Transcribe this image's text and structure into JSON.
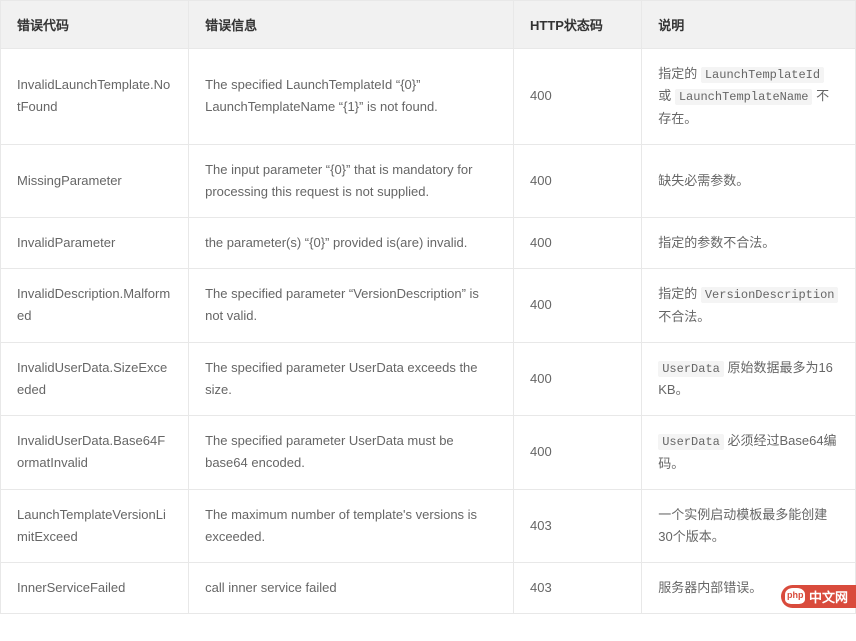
{
  "table": {
    "columns": [
      {
        "label": "错误代码",
        "class": "col1"
      },
      {
        "label": "错误信息",
        "class": "col2"
      },
      {
        "label": "HTTP状态码",
        "class": "col3"
      },
      {
        "label": "说明",
        "class": "col4"
      }
    ],
    "rows": [
      {
        "code": "InvalidLaunchTemplate.NotFound",
        "message": "The specified LaunchTemplateId “{0}” LaunchTemplateName “{1}” is not found.",
        "status": "400",
        "desc_prefix": "指定的",
        "desc_code1": "LaunchTemplateId",
        "desc_mid": "或",
        "desc_code2": "LaunchTemplateName",
        "desc_suffix": "不存在。",
        "desc_kind": "two_code"
      },
      {
        "code": "MissingParameter",
        "message": "The input parameter “{0}” that is mandatory for processing this request is not supplied.",
        "status": "400",
        "desc_plain": "缺失必需参数。",
        "desc_kind": "plain"
      },
      {
        "code": "InvalidParameter",
        "message": "the parameter(s) “{0}” provided is(are) invalid.",
        "status": "400",
        "desc_plain": "指定的参数不合法。",
        "desc_kind": "plain"
      },
      {
        "code": "InvalidDescription.Malformed",
        "message": "The specified parameter “VersionDescription” is not valid.",
        "status": "400",
        "desc_prefix": "指定的",
        "desc_code1": "VersionDescription",
        "desc_suffix": "不合法。",
        "desc_kind": "one_code"
      },
      {
        "code": "InvalidUserData.SizeExceeded",
        "message": "The specified parameter UserData exceeds the size.",
        "status": "400",
        "desc_code1": "UserData",
        "desc_suffix": "原始数据最多为16 KB。",
        "desc_kind": "code_first"
      },
      {
        "code": "InvalidUserData.Base64FormatInvalid",
        "message": "The specified parameter UserData must be base64 encoded.",
        "status": "400",
        "desc_code1": "UserData",
        "desc_suffix": "必须经过Base64编码。",
        "desc_kind": "code_first"
      },
      {
        "code": "LaunchTemplateVersionLimitExceed",
        "message": "The maximum number of template's versions is exceeded.",
        "status": "403",
        "desc_plain": "一个实例启动模板最多能创建30个版本。",
        "desc_kind": "plain"
      },
      {
        "code": "InnerServiceFailed",
        "message": "call inner service failed",
        "status": "403",
        "desc_plain": "服务器内部错误。",
        "desc_kind": "plain"
      }
    ]
  },
  "logo": {
    "text": "中文网",
    "php": "php"
  },
  "colors": {
    "header_bg": "#f1f1f1",
    "border": "#e8e8e8",
    "text_header": "#333333",
    "text_body": "#666666",
    "code_bg": "#f4f4f4",
    "badge_bg": "#d94b3c",
    "badge_fg": "#ffffff"
  }
}
